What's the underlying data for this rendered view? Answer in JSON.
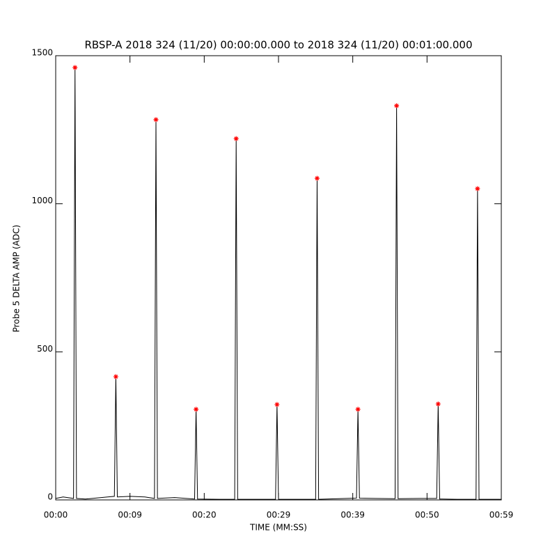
{
  "chart_data": {
    "type": "line",
    "title": "RBSP-A 2018 324 (11/20) 00:00:00.000 to 2018 324 (11/20) 00:01:00.000",
    "x_label": "TIME (MM:SS)",
    "y_label": "Probe 5 DELTA AMP (ADC)",
    "xlim": [
      0,
      60
    ],
    "ylim": [
      0,
      1500
    ],
    "xticks": [
      {
        "value": 0,
        "label": "00:00"
      },
      {
        "value": 10,
        "label": "00:09"
      },
      {
        "value": 20,
        "label": "00:20"
      },
      {
        "value": 30,
        "label": "00:29"
      },
      {
        "value": 40,
        "label": "00:39"
      },
      {
        "value": 50,
        "label": "00:50"
      },
      {
        "value": 60,
        "label": "00:59"
      }
    ],
    "yticks": [
      0,
      500,
      1000,
      1500
    ],
    "series": [
      {
        "name": "trace",
        "color": "#000000",
        "x": [
          0,
          1,
          2.4,
          2.6,
          2.8,
          4,
          7,
          7.9,
          8.1,
          8.3,
          10,
          12,
          13.3,
          13.5,
          13.7,
          16,
          18.7,
          18.9,
          19.1,
          22,
          24.1,
          24.3,
          24.5,
          27,
          29.6,
          29.8,
          30,
          33,
          35,
          35.2,
          35.4,
          38,
          40.5,
          40.7,
          40.9,
          43,
          45.7,
          45.9,
          46.1,
          49,
          51.3,
          51.5,
          51.7,
          54,
          56.6,
          56.8,
          57,
          60
        ],
        "values": [
          5,
          10,
          5,
          1460,
          5,
          3,
          10,
          12,
          416,
          10,
          12,
          10,
          5,
          1284,
          5,
          8,
          3,
          306,
          3,
          2,
          2,
          1220,
          2,
          2,
          2,
          322,
          2,
          2,
          2,
          1086,
          2,
          4,
          6,
          306,
          6,
          5,
          4,
          1331,
          4,
          5,
          5,
          324,
          3,
          2,
          2,
          1051,
          2,
          2
        ]
      },
      {
        "name": "peaks",
        "type": "scatter",
        "color": "#ff0000",
        "x": [
          2.6,
          8.1,
          13.5,
          18.9,
          24.3,
          29.8,
          35.2,
          40.7,
          45.9,
          51.5,
          56.8
        ],
        "values": [
          1460,
          416,
          1284,
          306,
          1220,
          322,
          1086,
          306,
          1331,
          324,
          1051
        ]
      }
    ]
  }
}
